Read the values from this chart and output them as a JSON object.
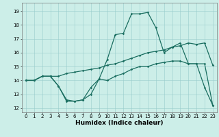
{
  "xlabel": "Humidex (Indice chaleur)",
  "bg_color": "#cceee8",
  "grid_color": "#99cccc",
  "line_color": "#1a6e60",
  "xlim": [
    -0.5,
    23.5
  ],
  "ylim": [
    11.7,
    19.6
  ],
  "xticks": [
    0,
    1,
    2,
    3,
    4,
    5,
    6,
    7,
    8,
    9,
    10,
    11,
    12,
    13,
    14,
    15,
    16,
    17,
    18,
    19,
    20,
    21,
    22,
    23
  ],
  "yticks": [
    12,
    13,
    14,
    15,
    16,
    17,
    18,
    19
  ],
  "line1_x": [
    0,
    1,
    2,
    3,
    4,
    5,
    6,
    7,
    8,
    9,
    10,
    11,
    12,
    13,
    14,
    15,
    16,
    17,
    18,
    19,
    20,
    21,
    22,
    23
  ],
  "line1_y": [
    14,
    14,
    14.3,
    14.3,
    13.6,
    12.5,
    12.5,
    12.6,
    13.0,
    14.1,
    14.0,
    14.3,
    14.5,
    14.8,
    15.0,
    15.0,
    15.2,
    15.3,
    15.4,
    15.4,
    15.2,
    15.2,
    15.2,
    12.2
  ],
  "line2_x": [
    0,
    1,
    2,
    3,
    4,
    5,
    6,
    7,
    8,
    9,
    10,
    11,
    12,
    13,
    14,
    15,
    16,
    17,
    18,
    19,
    20,
    21,
    22,
    23
  ],
  "line2_y": [
    14,
    14,
    14.3,
    14.3,
    13.6,
    12.6,
    12.5,
    12.6,
    13.5,
    14.1,
    15.5,
    17.3,
    17.4,
    18.8,
    18.8,
    18.9,
    17.8,
    16.0,
    16.4,
    16.7,
    15.2,
    15.2,
    13.5,
    12.2
  ],
  "line3_x": [
    0,
    1,
    2,
    3,
    4,
    5,
    6,
    7,
    8,
    9,
    10,
    11,
    12,
    13,
    14,
    15,
    16,
    17,
    18,
    19,
    20,
    21,
    22,
    23
  ],
  "line3_y": [
    14,
    14,
    14.3,
    14.3,
    14.3,
    14.5,
    14.6,
    14.7,
    14.8,
    14.9,
    15.1,
    15.2,
    15.4,
    15.6,
    15.8,
    16.0,
    16.1,
    16.2,
    16.4,
    16.5,
    16.7,
    16.6,
    16.7,
    15.1
  ],
  "tick_fontsize": 5,
  "xlabel_fontsize": 6.5,
  "marker_size": 1.8,
  "line_width": 0.9
}
